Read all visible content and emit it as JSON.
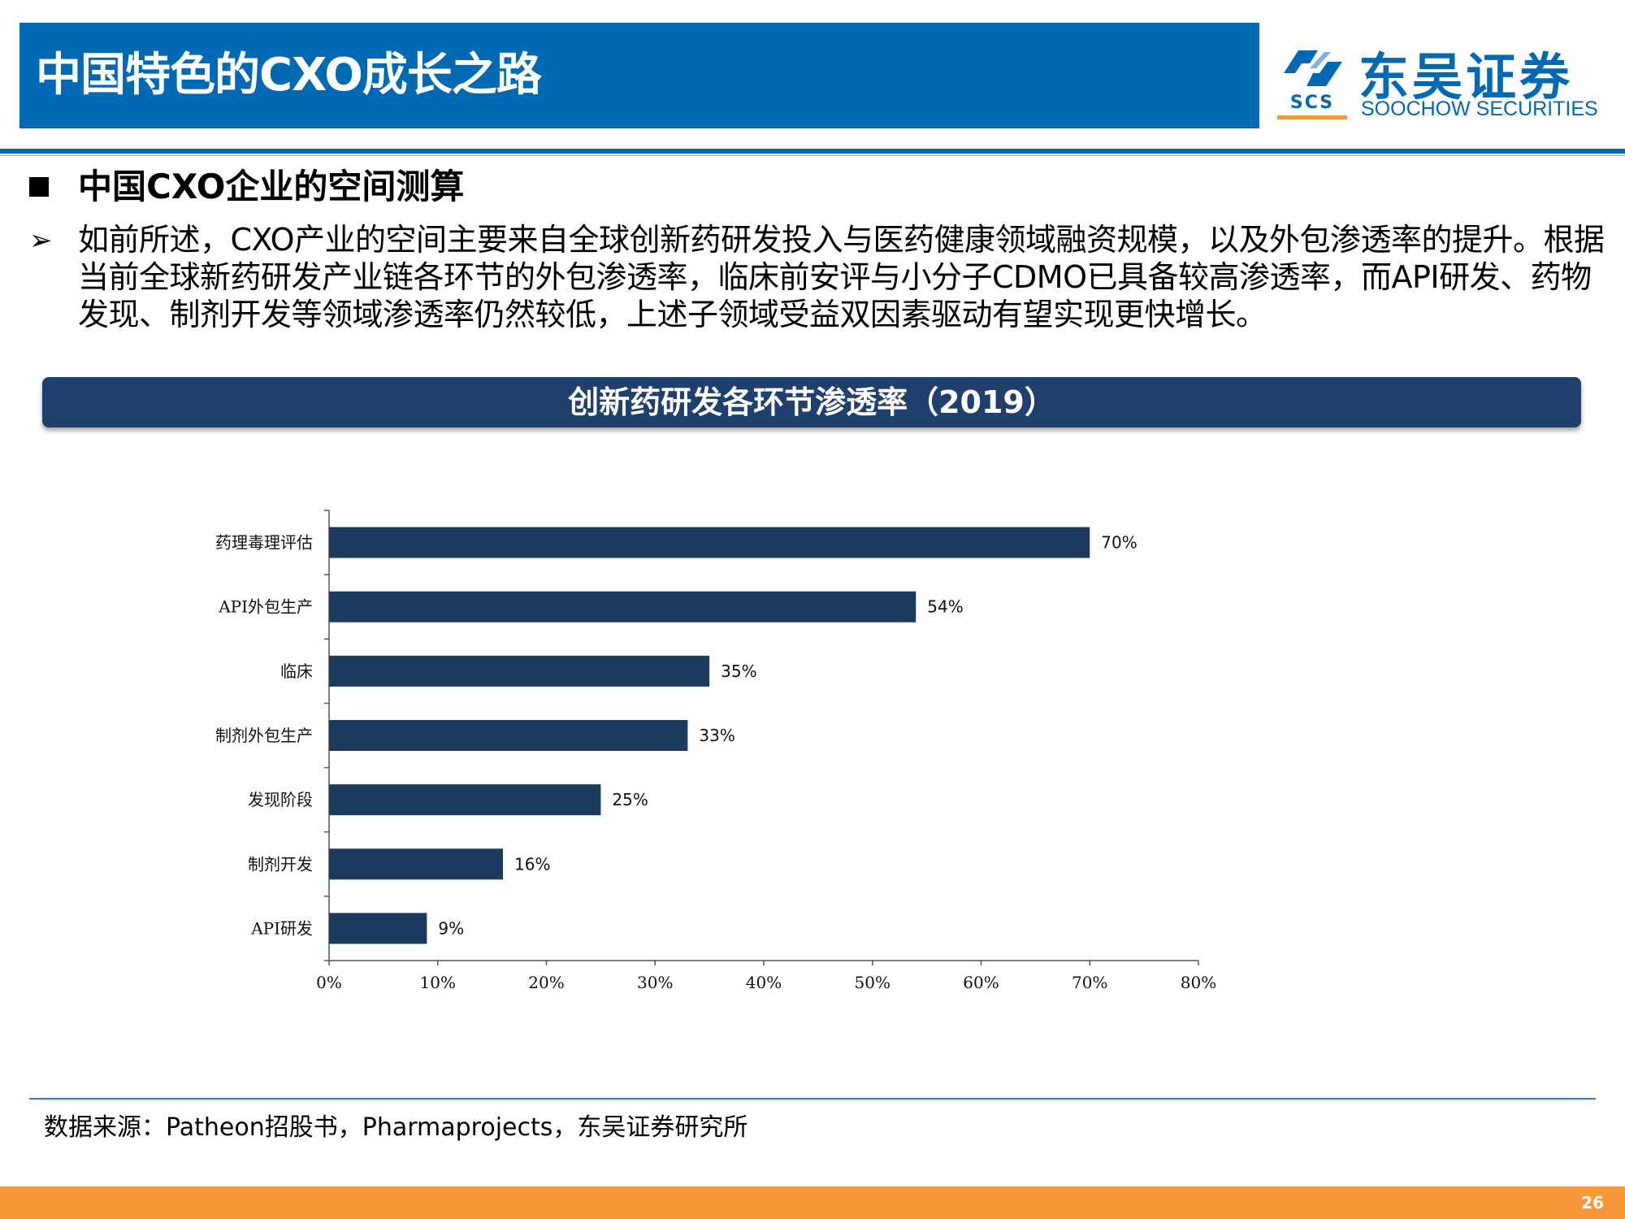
{
  "header": {
    "title": "中国特色的CXO成长之路",
    "brand_color": "#0069b4"
  },
  "logo": {
    "cn_name": "东吴证券",
    "en_name": "SOOCHOW SECURITIES",
    "abbr": "SCS",
    "accent_color": "#f59a3a"
  },
  "section": {
    "title": "中国CXO企业的空间测算"
  },
  "body": {
    "text": "如前所述，CXO产业的空间主要来自全球创新药研发投入与医药健康领域融资规模，以及外包渗透率的提升。根据当前全球新药研发产业链各环节的外包渗透率，临床前安评与小分子CDMO已具备较高渗透率，而API研发、药物发现、制剂开发等领域渗透率仍然较低，上述子领域受益双因素驱动有望实现更快增长。"
  },
  "chart_banner": {
    "title": "创新药研发各环节渗透率（2019）"
  },
  "chart_data": {
    "type": "bar",
    "orientation": "horizontal",
    "categories": [
      "药理毒理评估",
      "API外包生产",
      "临床",
      "制剂外包生产",
      "发现阶段",
      "制剂开发",
      "API研发"
    ],
    "values": [
      70,
      54,
      35,
      33,
      25,
      16,
      9
    ],
    "value_labels": [
      "70%",
      "54%",
      "35%",
      "33%",
      "25%",
      "16%",
      "9%"
    ],
    "xticks": [
      "0%",
      "10%",
      "20%",
      "30%",
      "40%",
      "50%",
      "60%",
      "70%",
      "80%"
    ],
    "xlim": [
      0,
      80
    ],
    "grid": false,
    "bar_color": "#1b3a5e"
  },
  "footer": {
    "source": "数据来源：Patheon招股书，Pharmaprojects，东吴证券研究所",
    "page_number": "26"
  }
}
